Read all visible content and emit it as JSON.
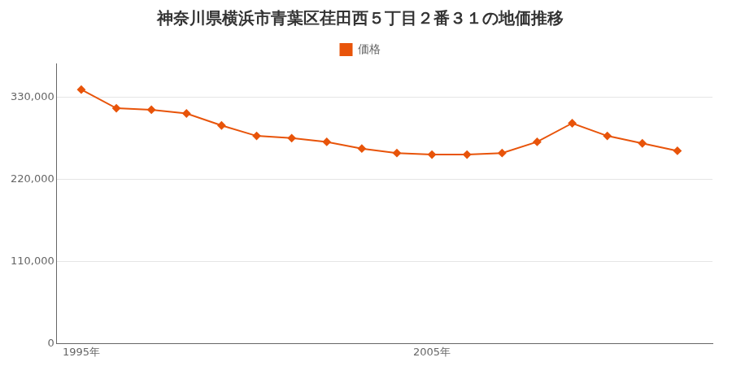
{
  "chart_data": {
    "type": "line",
    "title": "神奈川県横浜市青葉区荏田西５丁目２番３１の地価推移",
    "x": [
      1995,
      1996,
      1997,
      1998,
      1999,
      2000,
      2001,
      2002,
      2003,
      2004,
      2005,
      2006,
      2007,
      2008,
      2009,
      2010,
      2011,
      2012
    ],
    "series": [
      {
        "name": "価格",
        "color": "#e8540a",
        "marker": "diamond",
        "values": [
          340000,
          315000,
          313000,
          308000,
          292000,
          278000,
          275000,
          270000,
          261000,
          255000,
          253000,
          253000,
          255000,
          270000,
          295000,
          278000,
          268000,
          258000
        ]
      }
    ],
    "xlim": [
      1994.3,
      2013.0
    ],
    "xticks": [
      {
        "value": 1995,
        "label": "1995年"
      },
      {
        "value": 2005,
        "label": "2005年"
      }
    ],
    "ylim": [
      0,
      375000
    ],
    "yticks": [
      0,
      {
        "value": 110000,
        "label": "110,000"
      },
      {
        "value": 220000,
        "label": "220,000"
      },
      {
        "value": 330000,
        "label": "330,000"
      }
    ],
    "grid": "y",
    "legend": "top"
  }
}
